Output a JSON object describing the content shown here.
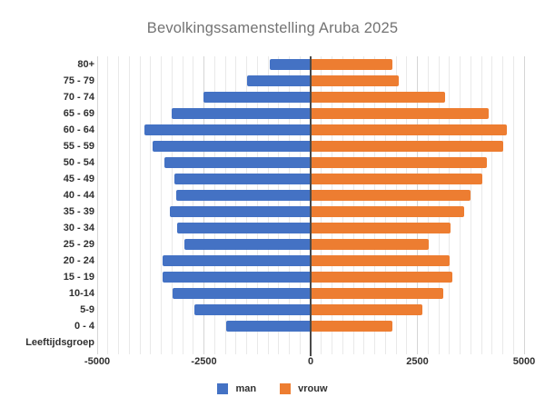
{
  "title": "Bevolkingssamenstelling Aruba 2025",
  "chart_data": {
    "type": "bar",
    "subtype": "population-pyramid",
    "orientation": "horizontal",
    "title": "Bevolkingssamenstelling Aruba 2025",
    "axis_title": "Leeftijdsgroep",
    "categories": [
      "80+",
      "75 - 79",
      "70 - 74",
      "65 - 69",
      "60 - 64",
      "55 - 59",
      "50 - 54",
      "45 - 49",
      "40 - 44",
      "35 - 39",
      "30 - 34",
      "25 - 29",
      "20 - 24",
      "15 - 19",
      "10-14",
      "5-9",
      "0 - 4"
    ],
    "series": [
      {
        "name": "man",
        "side": "left",
        "color": "#4472C4",
        "values": [
          960,
          1490,
          2520,
          3260,
          3890,
          3710,
          3430,
          3190,
          3160,
          3300,
          3130,
          2950,
          3460,
          3470,
          3230,
          2720,
          1980
        ]
      },
      {
        "name": "vrouw",
        "side": "right",
        "color": "#ED7D31",
        "values": [
          1910,
          2070,
          3150,
          4160,
          4590,
          4500,
          4130,
          4010,
          3740,
          3590,
          3280,
          2760,
          3260,
          3310,
          3100,
          2610,
          1920
        ]
      }
    ],
    "xlim": [
      -5000,
      5000
    ],
    "x_tick_labels": [
      "-5000",
      "-2500",
      "0",
      "2500",
      "5000"
    ],
    "x_tick_values": [
      -5000,
      -2500,
      0,
      2500,
      5000
    ],
    "minor_unit": 250,
    "major_unit": 2500,
    "grid": "vertical-minor-and-major",
    "legend_position": "bottom"
  },
  "legend": {
    "items": [
      {
        "label": "man",
        "color": "#4472C4"
      },
      {
        "label": "vrouw",
        "color": "#ED7D31"
      }
    ]
  },
  "colors": {
    "background": "#ffffff",
    "title_text": "#737373",
    "axis_text": "#303030",
    "minor_gridline": "#e9e9e9",
    "major_gridline": "#d5d5d5",
    "zero_line": "#4a4a4a",
    "man_bar": "#4472C4",
    "vrouw_bar": "#ED7D31"
  }
}
